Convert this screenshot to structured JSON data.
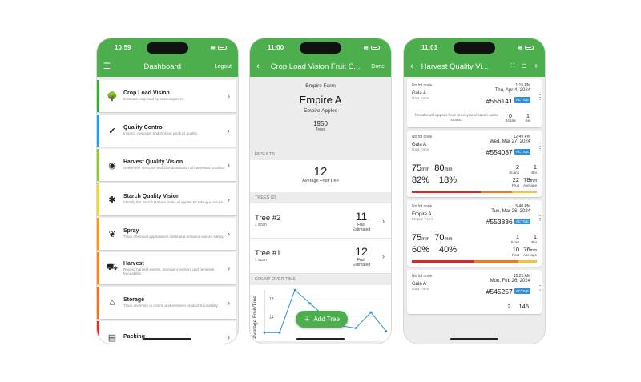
{
  "colors": {
    "green": "#4cae4c",
    "badge": "#2f8fd8",
    "red": "#d62a2a",
    "orange": "#f07a24",
    "yellow": "#f3c437"
  },
  "phone1": {
    "time": "10:59",
    "title": "Dashboard",
    "logout": "Logout",
    "items": [
      {
        "title": "Crop Load Vision",
        "desc": "Estimate crop load by scanning trees.",
        "icon": "tree-icon",
        "color": "#3aaa3a"
      },
      {
        "title": "Quality Control",
        "desc": "Inspect, manage, and monitor product quality.",
        "icon": "clipboard-check-icon",
        "color": "#2e9bd6"
      },
      {
        "title": "Harvest Quality Vision",
        "desc": "Determine the color and size distribution of harvested produce.",
        "icon": "eye-icon",
        "color": "#8dc63f"
      },
      {
        "title": "Starch Quality Vision",
        "desc": "Identify the Starch Pattern Index of apples by taking a picture.",
        "icon": "starch-icon",
        "color": "#f2d52e"
      },
      {
        "title": "Spray",
        "desc": "Track chemical applications costs and enhance worker safety.",
        "icon": "leaf-icon",
        "color": "#f39a1e"
      },
      {
        "title": "Harvest",
        "desc": "Record harvest events, manage inventory and generate traceability.",
        "icon": "cart-icon",
        "color": "#f28a1e"
      },
      {
        "title": "Storage",
        "desc": "Track inventory in rooms and enhance product traceability.",
        "icon": "warehouse-icon",
        "color": "#e5732a"
      },
      {
        "title": "Packing",
        "desc": "",
        "icon": "box-icon",
        "color": "#d92f2f"
      }
    ]
  },
  "phone2": {
    "time": "11:00",
    "title": "Crop Load Vision Fruit C...",
    "done": "Done",
    "farm": "Empire Farm",
    "block": "Empire A",
    "variety": "Empire Apples",
    "trees_count": "1950",
    "trees_label": "Trees",
    "results_header": "RESULTS",
    "results_value": "12",
    "results_label": "Average Fruit/Tree",
    "trees_header": "TREES (2)",
    "trees": [
      {
        "name": "Tree #2",
        "scans": "1 scan",
        "count": "11",
        "label1": "Fruit",
        "label2": "Estimated"
      },
      {
        "name": "Tree #1",
        "scans": "1 scan",
        "count": "12",
        "label1": "Fruit",
        "label2": "Estimated"
      }
    ],
    "chart_header": "COUNT OVER TIME",
    "add_tree": "Add Tree",
    "chart_data": {
      "type": "line",
      "ylabel": "Average Fruit/Tree",
      "yticks": [
        "18",
        "14"
      ],
      "ylim": [
        10,
        20
      ],
      "x": [
        1,
        2,
        3,
        4,
        5,
        6,
        7,
        8,
        9
      ],
      "values": [
        10.5,
        10.5,
        20,
        17,
        14,
        12,
        11.5,
        15,
        10.8
      ]
    }
  },
  "phone3": {
    "time": "11:01",
    "title": "Harvest Quality Vi...",
    "cards": [
      {
        "lot": "No lot code",
        "variety": "Gala A",
        "farm": "Gala Farm",
        "time": "1:15 PM",
        "date": "Thu, Apr 4, 2024",
        "id": "#556141",
        "badge": "ACTIVE",
        "empty": "Results will appear here once you've taken some scans..",
        "scans": "0",
        "scans_label": "Scans",
        "bin": "1",
        "bin_label": "Bin"
      },
      {
        "lot": "No lot code",
        "variety": "Gala A",
        "farm": "Gala Farm",
        "time": "12:49 PM",
        "date": "Wed, Mar 27, 2024",
        "id": "#554037",
        "badge": "ACTIVE",
        "m1": "75",
        "m2": "80",
        "unit": "mm",
        "p1": "82%",
        "p2": "18%",
        "scans": "2",
        "scans_label": "Scans",
        "bin": "1",
        "bin_label": "Bin",
        "fruit": "22",
        "fruit_label": "Fruit",
        "avg": "78",
        "avg_unit": "mm",
        "avg_label": "Average",
        "bar": [
          55,
          25,
          20
        ]
      },
      {
        "lot": "No lot code",
        "variety": "Empire A",
        "farm": "Empire Farm",
        "time": "5:40 PM",
        "date": "Tue, Mar 26, 2024",
        "id": "#553836",
        "badge": "ACTIVE",
        "m1": "75",
        "m2": "70",
        "unit": "mm",
        "p1": "60%",
        "p2": "40%",
        "scans": "1",
        "scans_label": "Scan",
        "bin": "1",
        "bin_label": "Bin",
        "fruit": "10",
        "fruit_label": "Fruit",
        "avg": "76",
        "avg_unit": "mm",
        "avg_label": "Average",
        "bar": [
          50,
          35,
          15
        ]
      },
      {
        "lot": "No lot code",
        "variety": "Gala A",
        "farm": "Gala Farm",
        "time": "10:21 AM",
        "date": "Mon, Feb 26, 2024",
        "id": "#545257",
        "badge": "ACTIVE",
        "scans": "2",
        "bin": "145"
      }
    ]
  }
}
